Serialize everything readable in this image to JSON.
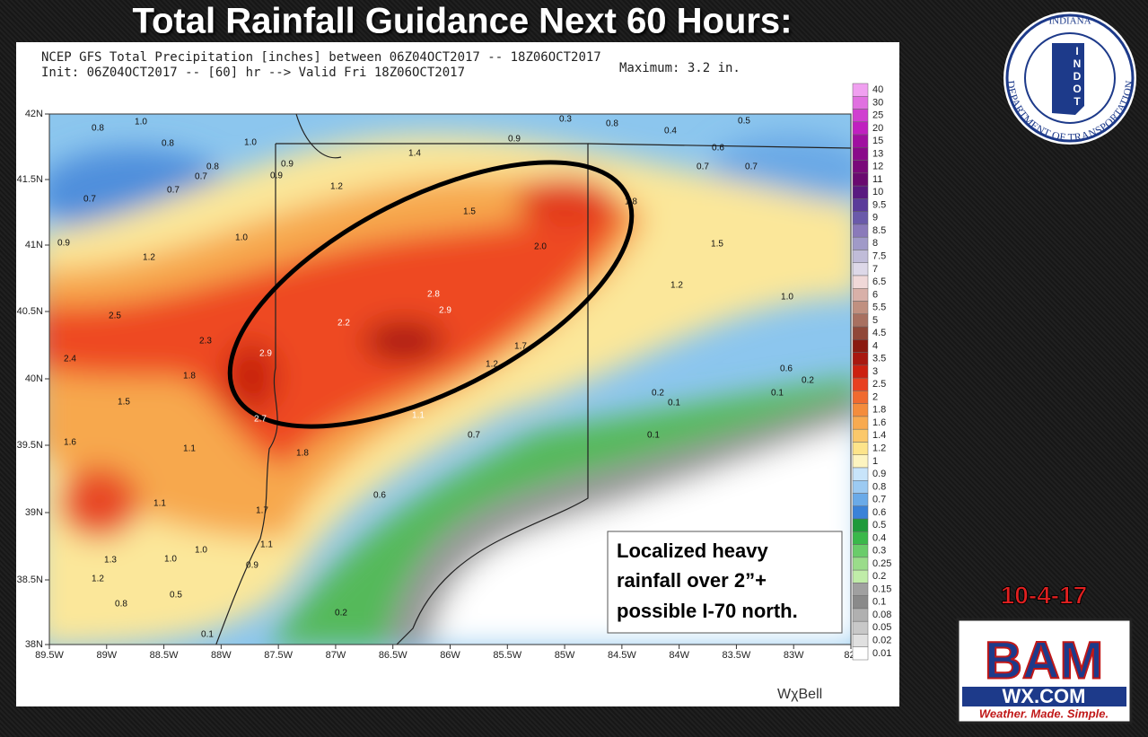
{
  "title": "Total Rainfall Guidance Next 60 Hours:",
  "header": {
    "line1": "NCEP GFS Total Precipitation [inches] between 06Z04OCT2017 -- 18Z06OCT2017",
    "line2": "Init: 06Z04OCT2017 -- [60] hr --> Valid Fri 18Z06OCT2017",
    "maximum": "Maximum: 3.2 in."
  },
  "lat_labels": [
    "42N",
    "41.5N",
    "41N",
    "40.5N",
    "40N",
    "39.5N",
    "39N",
    "38.5N",
    "38N"
  ],
  "lon_labels": [
    "89.5W",
    "89W",
    "88.5W",
    "88W",
    "87.5W",
    "87W",
    "86.5W",
    "86W",
    "85.5W",
    "85W",
    "84.5W",
    "84W",
    "83.5W",
    "83W",
    "82."
  ],
  "colorbar_labels": [
    "40",
    "30",
    "25",
    "20",
    "15",
    "13",
    "12",
    "11",
    "10",
    "9.5",
    "9",
    "8.5",
    "8",
    "7.5",
    "7",
    "6.5",
    "6",
    "5.5",
    "5",
    "4.5",
    "4",
    "3.5",
    "3",
    "2.5",
    "2",
    "1.8",
    "1.6",
    "1.4",
    "1.2",
    "1",
    "0.9",
    "0.8",
    "0.7",
    "0.6",
    "0.5",
    "0.4",
    "0.3",
    "0.25",
    "0.2",
    "0.15",
    "0.1",
    "0.08",
    "0.05",
    "0.02",
    "0.01"
  ],
  "map_labels": [
    "1.0",
    "0.8",
    "0.8",
    "1.0",
    "0.8",
    "0.7",
    "0.7",
    "0.7",
    "0.9",
    "0.9",
    "1.2",
    "1.4",
    "0.9",
    "0.3",
    "0.8",
    "0.4",
    "0.5",
    "0.6",
    "0.7",
    "0.7",
    "1.5",
    "1.8",
    "1.0",
    "0.9",
    "1.2",
    "2.0",
    "1.5",
    "1.2",
    "1.0",
    "2.8",
    "2.9",
    "2.5",
    "2.2",
    "2.3",
    "2.9",
    "1.7",
    "1.2",
    "2.4",
    "1.8",
    "0.6",
    "0.2",
    "0.2",
    "0.1",
    "0.1",
    "1.5",
    "1.1",
    "2.7",
    "0.7",
    "0.1",
    "1.6",
    "1.1",
    "1.8",
    "0.6",
    "1.1",
    "1.7",
    "1.1",
    "1.0",
    "1.3",
    "1.0",
    "0.9",
    "1.2",
    "0.8",
    "0.5",
    "0.2",
    "0.1"
  ],
  "annotation": [
    "Localized heavy",
    "rainfall over 2”+",
    "possible I-70 north."
  ],
  "credit": "WχBell",
  "indot": {
    "top": "INDIANA",
    "ring": "DEPARTMENT OF TRANSPORTATION",
    "letters": [
      "I",
      "N",
      "D",
      "O",
      "T"
    ]
  },
  "date": "10-4-17",
  "bam": {
    "logo": "BAM",
    "site": "WX.COM",
    "tagline": "Weather. Made. Simple."
  }
}
